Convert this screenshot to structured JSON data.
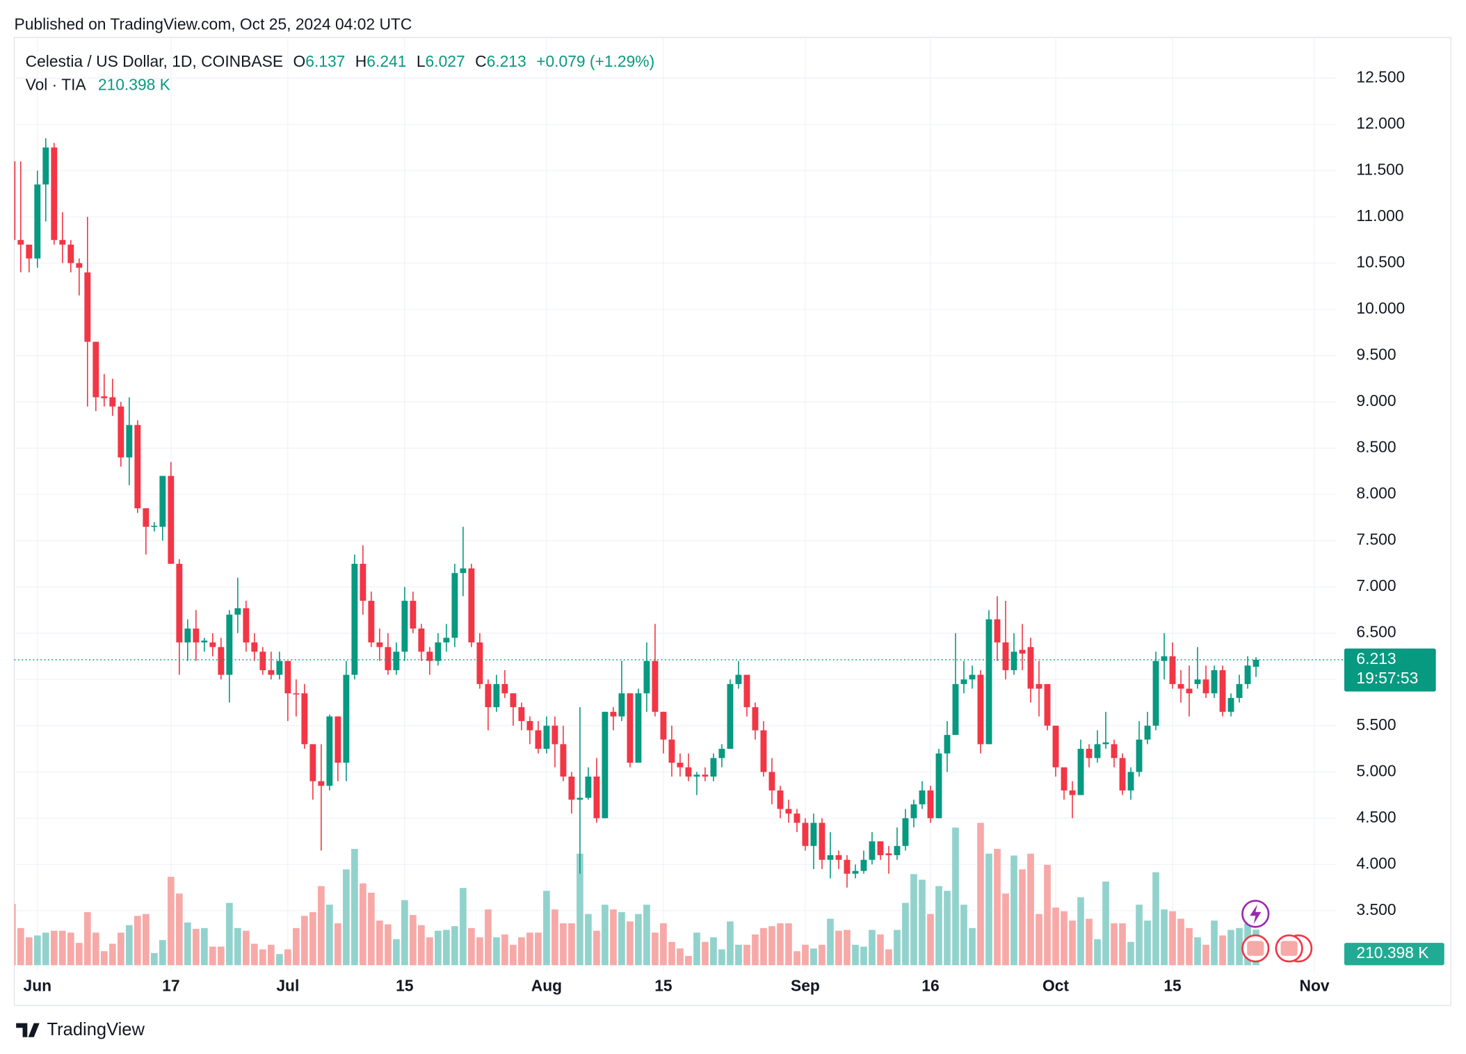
{
  "published": "Published on TradingView.com, Oct 25, 2024 04:02 UTC",
  "legend": {
    "symbol": "Celestia / US Dollar, 1D, COINBASE",
    "o_label": "O",
    "o_value": "6.137",
    "h_label": "H",
    "h_value": "6.241",
    "l_label": "L",
    "l_value": "6.027",
    "c_label": "C",
    "c_value": "6.213",
    "change": "+0.079 (+1.29%)",
    "volume_name": "Vol · TIA",
    "volume_value": "210.398 K"
  },
  "countdown": "19:57:53",
  "footer": "TradingView",
  "chart_data": {
    "type": "candlestick",
    "categories": [
      null,
      null,
      null,
      "Jun",
      null,
      null,
      null,
      null,
      null,
      null,
      null,
      null,
      null,
      null,
      null,
      null,
      null,
      null,
      null,
      "17",
      null,
      null,
      null,
      null,
      null,
      null,
      null,
      null,
      null,
      null,
      null,
      null,
      null,
      "Jul",
      null,
      null,
      null,
      null,
      null,
      null,
      null,
      null,
      null,
      null,
      null,
      null,
      null,
      "15",
      null,
      null,
      null,
      null,
      null,
      null,
      null,
      null,
      null,
      null,
      null,
      null,
      null,
      null,
      null,
      null,
      "Aug",
      null,
      null,
      null,
      null,
      null,
      null,
      null,
      null,
      null,
      null,
      null,
      null,
      null,
      "15",
      null,
      null,
      null,
      null,
      null,
      null,
      null,
      null,
      null,
      null,
      null,
      null,
      null,
      null,
      null,
      null,
      "Sep",
      null,
      null,
      null,
      null,
      null,
      null,
      null,
      null,
      null,
      null,
      null,
      null,
      null,
      null,
      "16",
      null,
      null,
      null,
      null,
      null,
      null,
      null,
      null,
      null,
      null,
      null,
      null,
      null,
      null,
      "Oct",
      null,
      null,
      null,
      null,
      null,
      null,
      null,
      null,
      null,
      null,
      null,
      null,
      null,
      "15",
      null,
      null,
      null,
      null,
      null,
      null,
      null,
      null,
      null,
      null,
      null,
      null,
      null,
      null,
      null,
      null,
      "Nov"
    ],
    "open": [
      11.6,
      10.75,
      10.7,
      10.55,
      11.35,
      11.75,
      10.75,
      10.7,
      10.5,
      10.4,
      9.65,
      9.06,
      9.05,
      8.95,
      8.4,
      8.75,
      7.85,
      7.65,
      7.65,
      8.2,
      7.25,
      6.4,
      6.55,
      6.4,
      6.4,
      6.35,
      6.05,
      6.7,
      6.77,
      6.4,
      6.3,
      6.1,
      6.05,
      6.2,
      5.85,
      5.85,
      5.3,
      4.9,
      4.85,
      5.6,
      5.1,
      6.05,
      7.25,
      6.85,
      6.4,
      6.35,
      6.1,
      6.3,
      6.85,
      6.55,
      6.3,
      6.2,
      6.4,
      6.45,
      7.15,
      7.2,
      6.4,
      5.95,
      5.7,
      5.95,
      5.85,
      5.7,
      5.55,
      5.45,
      5.25,
      5.5,
      5.3,
      4.95,
      4.7,
      4.72,
      4.95,
      4.5,
      5.65,
      5.6,
      5.85,
      5.1,
      5.85,
      6.2,
      5.65,
      5.35,
      5.1,
      5.05,
      4.95,
      4.97,
      4.95,
      5.15,
      5.25,
      5.95,
      6.05,
      5.7,
      5.45,
      5.0,
      4.8,
      4.6,
      4.55,
      4.45,
      4.2,
      4.45,
      4.05,
      4.1,
      4.05,
      3.9,
      3.93,
      4.05,
      4.25,
      4.12,
      4.1,
      4.2,
      4.5,
      4.65,
      4.8,
      4.5,
      5.2,
      5.4,
      5.95,
      6.0,
      6.05,
      5.3,
      6.65,
      6.4,
      6.1,
      6.32,
      6.35,
      5.95,
      5.95,
      5.5,
      5.05,
      4.8,
      4.75,
      5.25,
      5.15,
      5.3,
      5.3,
      5.15,
      4.8,
      5.0,
      5.35,
      5.5,
      6.2,
      6.25,
      5.95,
      5.9,
      5.95,
      6.0,
      5.85,
      6.1,
      5.65,
      5.8,
      5.95,
      6.137,
      null,
      null,
      null,
      null,
      null,
      null,
      null
    ],
    "high": [
      11.65,
      11.6,
      10.7,
      11.5,
      11.85,
      11.8,
      11.05,
      10.75,
      10.55,
      11.0,
      9.65,
      9.3,
      9.25,
      9.0,
      9.05,
      8.8,
      7.85,
      7.7,
      8.2,
      8.35,
      7.3,
      6.65,
      6.75,
      6.45,
      6.5,
      6.45,
      6.75,
      7.1,
      6.85,
      6.5,
      6.35,
      6.3,
      6.3,
      6.2,
      6.0,
      5.95,
      5.3,
      5.3,
      5.62,
      5.6,
      6.2,
      7.35,
      7.45,
      6.95,
      6.55,
      6.5,
      6.4,
      7.0,
      6.95,
      6.6,
      6.35,
      6.5,
      6.6,
      7.25,
      7.65,
      7.25,
      6.5,
      6.0,
      6.05,
      6.1,
      5.85,
      5.75,
      5.6,
      5.55,
      5.6,
      5.6,
      5.5,
      5.0,
      5.7,
      5.05,
      5.15,
      5.65,
      5.7,
      6.2,
      5.85,
      5.9,
      6.4,
      6.6,
      5.65,
      5.5,
      5.2,
      5.2,
      5.0,
      5.05,
      5.2,
      5.3,
      6.0,
      6.2,
      6.05,
      5.75,
      5.55,
      5.15,
      4.85,
      4.7,
      4.6,
      4.5,
      4.55,
      4.5,
      4.35,
      4.15,
      4.1,
      4.0,
      4.15,
      4.35,
      4.25,
      4.2,
      4.4,
      4.6,
      4.7,
      4.9,
      4.85,
      5.25,
      5.55,
      6.5,
      6.2,
      6.15,
      6.1,
      6.75,
      6.9,
      6.85,
      6.5,
      6.6,
      6.45,
      6.2,
      5.95,
      5.5,
      5.05,
      4.9,
      5.35,
      5.3,
      5.45,
      5.65,
      5.35,
      5.2,
      5.05,
      5.55,
      5.65,
      6.3,
      6.5,
      6.4,
      6.1,
      6.15,
      6.35,
      6.15,
      6.15,
      6.15,
      5.85,
      6.05,
      6.25,
      6.241,
      null,
      null,
      null,
      null,
      null,
      null,
      null
    ],
    "low": [
      10.6,
      10.4,
      10.4,
      10.45,
      10.95,
      10.7,
      10.5,
      10.4,
      10.15,
      8.95,
      8.9,
      8.95,
      8.85,
      8.3,
      8.1,
      7.8,
      7.35,
      7.6,
      7.5,
      7.25,
      6.05,
      6.2,
      6.2,
      6.3,
      6.25,
      6.0,
      5.75,
      6.5,
      6.3,
      6.2,
      6.05,
      6.0,
      6.0,
      5.55,
      5.6,
      5.25,
      4.7,
      4.15,
      4.8,
      4.9,
      4.9,
      6.0,
      6.7,
      6.35,
      6.2,
      6.05,
      6.05,
      6.2,
      6.5,
      6.2,
      6.05,
      6.15,
      6.3,
      6.35,
      6.9,
      6.35,
      5.9,
      5.45,
      5.65,
      5.8,
      5.5,
      5.45,
      5.3,
      5.2,
      5.2,
      5.05,
      4.9,
      4.55,
      3.9,
      4.7,
      4.45,
      4.5,
      5.45,
      5.55,
      5.05,
      5.1,
      5.65,
      5.6,
      5.2,
      4.95,
      4.95,
      4.9,
      4.75,
      4.9,
      4.9,
      5.05,
      5.25,
      5.9,
      5.6,
      5.35,
      4.95,
      4.65,
      4.5,
      4.45,
      4.35,
      4.15,
      3.95,
      3.95,
      3.85,
      3.95,
      3.75,
      3.85,
      3.9,
      4.0,
      4.05,
      3.9,
      4.05,
      4.15,
      4.4,
      4.6,
      4.45,
      4.5,
      5.0,
      5.4,
      5.85,
      5.9,
      5.2,
      5.3,
      6.2,
      6.0,
      6.05,
      6.1,
      5.75,
      5.6,
      5.45,
      4.95,
      4.7,
      4.5,
      4.75,
      5.05,
      5.1,
      5.25,
      5.05,
      4.75,
      4.7,
      4.95,
      5.3,
      5.45,
      6.0,
      5.9,
      5.75,
      5.6,
      5.9,
      5.8,
      5.8,
      5.6,
      5.6,
      5.75,
      5.9,
      6.027,
      null,
      null,
      null,
      null,
      null,
      null,
      null
    ],
    "close": [
      10.75,
      10.7,
      10.55,
      11.35,
      11.75,
      10.75,
      10.7,
      10.5,
      10.45,
      9.65,
      9.05,
      9.04,
      8.95,
      8.4,
      8.75,
      7.85,
      7.65,
      7.66,
      8.2,
      7.25,
      6.4,
      6.55,
      6.4,
      6.42,
      6.35,
      6.05,
      6.7,
      6.77,
      6.4,
      6.3,
      6.1,
      6.05,
      6.2,
      5.85,
      5.84,
      5.3,
      4.9,
      4.85,
      5.6,
      5.1,
      6.05,
      7.25,
      6.85,
      6.4,
      6.35,
      6.1,
      6.3,
      6.85,
      6.55,
      6.3,
      6.2,
      6.4,
      6.45,
      7.15,
      7.2,
      6.4,
      5.95,
      5.7,
      5.95,
      5.85,
      5.7,
      5.55,
      5.45,
      5.25,
      5.5,
      5.3,
      4.95,
      4.7,
      4.72,
      4.95,
      4.5,
      5.65,
      5.6,
      5.85,
      5.1,
      5.85,
      6.2,
      5.65,
      5.35,
      5.1,
      5.05,
      4.95,
      4.97,
      4.95,
      5.15,
      5.25,
      5.95,
      6.05,
      5.7,
      5.45,
      5.0,
      4.8,
      4.6,
      4.55,
      4.45,
      4.2,
      4.45,
      4.05,
      4.1,
      4.05,
      3.9,
      3.93,
      4.05,
      4.25,
      4.1,
      4.1,
      4.2,
      4.5,
      4.65,
      4.8,
      4.5,
      5.2,
      5.4,
      5.95,
      6.0,
      6.05,
      5.3,
      6.65,
      6.4,
      6.1,
      6.3,
      6.28,
      5.9,
      5.9,
      5.5,
      5.05,
      4.8,
      4.75,
      5.25,
      5.15,
      5.3,
      5.32,
      5.15,
      4.8,
      5.0,
      5.35,
      5.5,
      6.2,
      6.25,
      5.95,
      5.9,
      5.85,
      6.0,
      5.85,
      6.1,
      5.65,
      5.8,
      5.95,
      6.15,
      6.213,
      null,
      null,
      null,
      null,
      null,
      null,
      null
    ],
    "volume": [
      363,
      220,
      165,
      176,
      193,
      204,
      204,
      193,
      132,
      314,
      193,
      83,
      127,
      193,
      237,
      292,
      303,
      72,
      149,
      523,
      424,
      253,
      215,
      220,
      110,
      110,
      369,
      220,
      204,
      127,
      94,
      121,
      66,
      94,
      220,
      292,
      314,
      468,
      358,
      248,
      567,
      688,
      484,
      429,
      264,
      242,
      154,
      385,
      297,
      237,
      165,
      204,
      209,
      231,
      457,
      220,
      165,
      330,
      165,
      182,
      121,
      165,
      193,
      193,
      440,
      330,
      248,
      248,
      660,
      303,
      204,
      358,
      330,
      314,
      259,
      303,
      358,
      193,
      248,
      138,
      99,
      55,
      193,
      138,
      165,
      94,
      259,
      121,
      121,
      182,
      220,
      231,
      248,
      248,
      83,
      121,
      99,
      121,
      275,
      204,
      209,
      121,
      110,
      209,
      182,
      94,
      209,
      369,
      539,
      506,
      303,
      468,
      440,
      814,
      358,
      220,
      842,
      660,
      688,
      424,
      649,
      567,
      660,
      303,
      594,
      341,
      319,
      264,
      402,
      275,
      154,
      495,
      248,
      248,
      138,
      358,
      264,
      550,
      330,
      319,
      275,
      220,
      165,
      121,
      264,
      176,
      209,
      220,
      248,
      210.398,
      null,
      null,
      null,
      null,
      null,
      null,
      null
    ],
    "ylim": [
      2.84,
      12.92
    ],
    "yticks": [
      {
        "value": 3.5,
        "label": "3.500"
      },
      {
        "value": 4,
        "label": "4.000"
      },
      {
        "value": 4.5,
        "label": "4.500"
      },
      {
        "value": 5,
        "label": "5.000"
      },
      {
        "value": 5.5,
        "label": "5.500"
      },
      {
        "value": 6,
        "label": "6.000"
      },
      {
        "value": 6.5,
        "label": "6.500"
      },
      {
        "value": 7,
        "label": "7.000"
      },
      {
        "value": 7.5,
        "label": "7.500"
      },
      {
        "value": 8,
        "label": "8.000"
      },
      {
        "value": 8.5,
        "label": "8.500"
      },
      {
        "value": 9,
        "label": "9.000"
      },
      {
        "value": 9.5,
        "label": "9.500"
      },
      {
        "value": 10,
        "label": "10.000"
      },
      {
        "value": 10.5,
        "label": "10.500"
      },
      {
        "value": 11,
        "label": "11.000"
      },
      {
        "value": 11.5,
        "label": "11.500"
      },
      {
        "value": 12,
        "label": "12.000"
      },
      {
        "value": 12.5,
        "label": "12.500"
      }
    ],
    "grid": true,
    "up_color": "#089981",
    "down_color": "#f23645",
    "volume_up_color": "#92d2cc",
    "volume_down_color": "#f7a9a7"
  }
}
